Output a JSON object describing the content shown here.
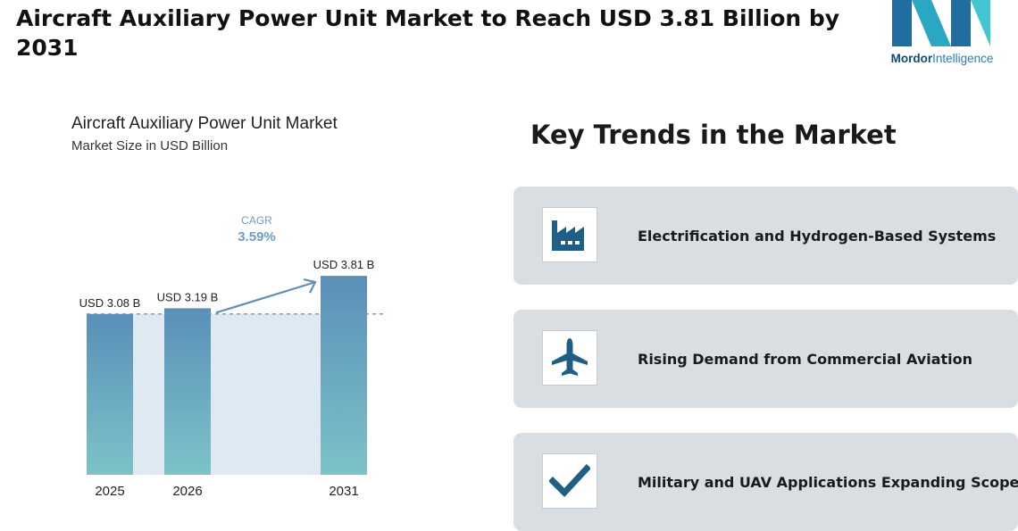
{
  "header": {
    "title": "Aircraft Auxiliary Power Unit Market to Reach USD 3.81 Billion by 2031"
  },
  "logo": {
    "brand_bold": "Mordor",
    "brand_light": "Intelligence"
  },
  "chart_data": {
    "type": "bar",
    "title": "Aircraft Auxiliary Power Unit Market",
    "subtitle": "Market Size in USD Billion",
    "categories": [
      "2025",
      "2026",
      "2031"
    ],
    "values": [
      3.08,
      3.19,
      3.81
    ],
    "value_labels": [
      "USD 3.08 B",
      "USD 3.19 B",
      "USD 3.81 B"
    ],
    "unit": "USD Billion",
    "cagr_label": "CAGR",
    "cagr_value": "3.59%",
    "colors": {
      "bar_top": "#5a8fb8",
      "bar_bottom": "#7cc3c8",
      "band": "#dfe9f1",
      "arrow": "#5f8fb4",
      "dash": "#6f9cc2"
    }
  },
  "trends": {
    "title": "Key Trends in the Market",
    "items": [
      {
        "label": "Electrification and Hydrogen-Based Systems",
        "icon": "factory-icon"
      },
      {
        "label": "Rising Demand from Commercial Aviation",
        "icon": "airplane-icon"
      },
      {
        "label": "Military and UAV Applications Expanding Scope",
        "icon": "checkmark-icon"
      }
    ],
    "icon_color": "#1f5f86",
    "card_color": "#d9dee3"
  }
}
